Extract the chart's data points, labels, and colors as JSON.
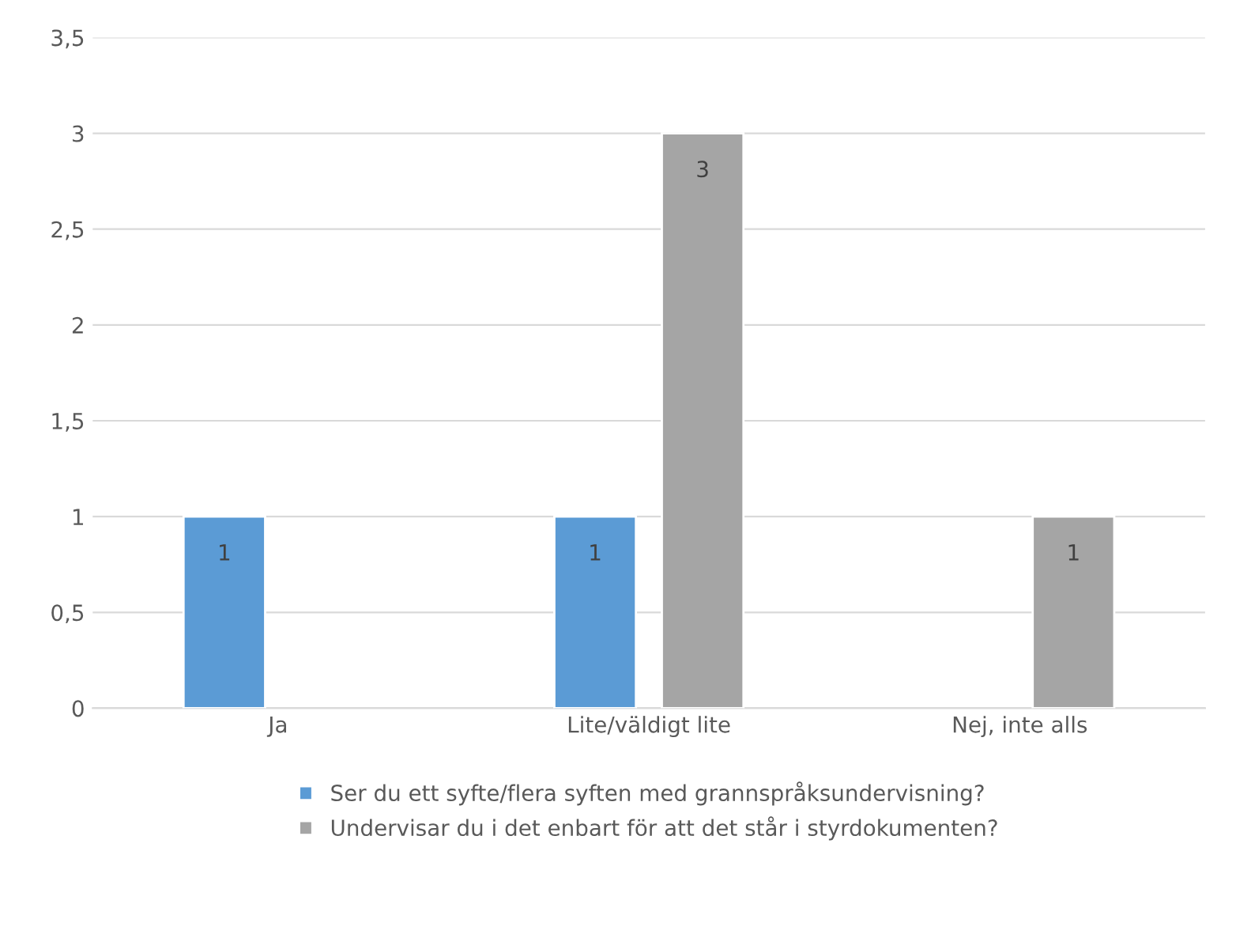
{
  "chart_data": {
    "type": "bar",
    "categories": [
      "Ja",
      "Lite/väldigt lite",
      "Nej, inte alls"
    ],
    "series": [
      {
        "name": "Ser du ett syfte/flera syften med grannspråksundervisning?",
        "color": "#5b9bd5",
        "values": [
          1,
          1,
          null
        ]
      },
      {
        "name": "Undervisar du i det enbart för att det står i styrdokumenten?",
        "color": "#a5a5a5",
        "values": [
          null,
          3,
          1
        ]
      }
    ],
    "ylim": [
      0,
      3.5
    ],
    "yticks": [
      0,
      {
        "value": 0.5,
        "label": "0,5"
      },
      1,
      {
        "value": 1.5,
        "label": "1,5"
      },
      2,
      {
        "value": 2.5,
        "label": "2,5"
      },
      3,
      {
        "value": 3.5,
        "label": "3,5"
      }
    ],
    "grid": "y",
    "legend": "bottom",
    "data_labels": true
  }
}
